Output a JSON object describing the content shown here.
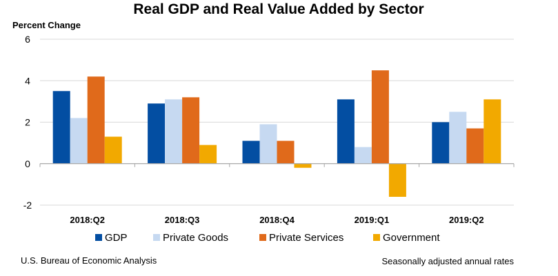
{
  "chart_data": {
    "type": "bar",
    "title": "Real GDP and Real Value Added by Sector",
    "ylabel": "Percent Change",
    "xlabel": "",
    "ylim": [
      -2,
      6
    ],
    "yticks": [
      -2,
      0,
      2,
      4,
      6
    ],
    "grid": true,
    "legend_position": "bottom",
    "categories": [
      "2018:Q2",
      "2018:Q3",
      "2018:Q4",
      "2019:Q1",
      "2019:Q2"
    ],
    "series": [
      {
        "name": "GDP",
        "color": "#034ea2",
        "values": [
          3.5,
          2.9,
          1.1,
          3.1,
          2.0
        ]
      },
      {
        "name": "Private Goods",
        "color": "#c6d9f1",
        "values": [
          2.2,
          3.1,
          1.9,
          0.8,
          2.5
        ]
      },
      {
        "name": "Private Services",
        "color": "#e06a1b",
        "values": [
          4.2,
          3.2,
          1.1,
          4.5,
          1.7
        ]
      },
      {
        "name": "Government",
        "color": "#f2a900",
        "values": [
          1.3,
          0.9,
          -0.2,
          -1.6,
          3.1
        ]
      }
    ]
  },
  "footer": {
    "source": "U.S. Bureau of Economic Analysis",
    "note": "Seasonally adjusted annual rates"
  }
}
